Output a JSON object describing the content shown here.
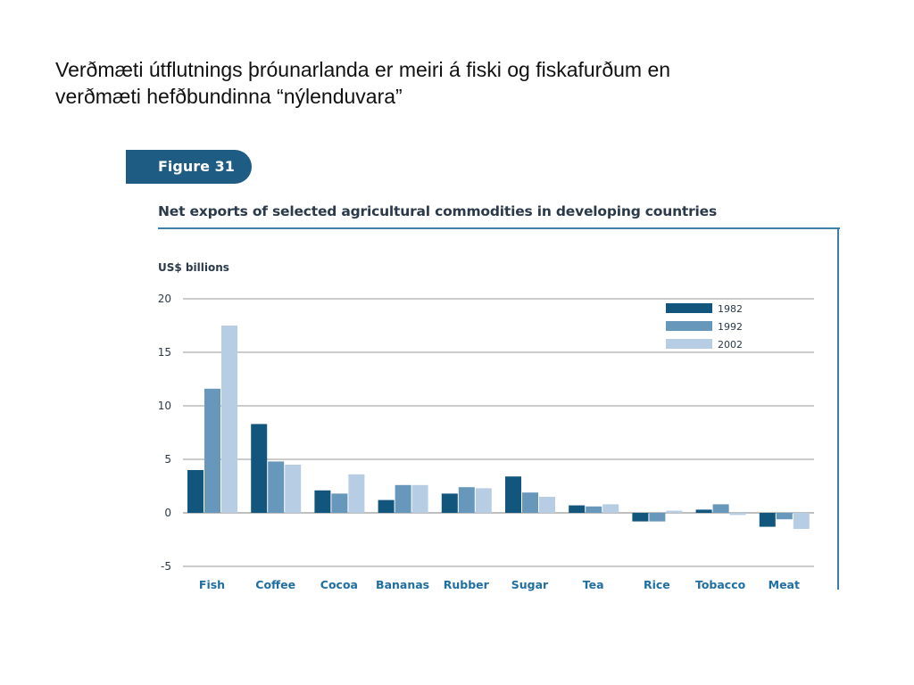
{
  "slide": {
    "title_line1": "Verðmæti útflutnings þróunarlanda er meiri á fiski og fiskafurðum en",
    "title_line2": "verðmæti hefðbundinna “nýlenduvara”"
  },
  "figure": {
    "tab_label": "Figure 31",
    "title": "Net exports of selected agricultural commodities in developing countries",
    "unit_label": "US$ billions"
  },
  "colors": {
    "1982": "#12567e",
    "1992": "#6897bc",
    "2002": "#b7cde3",
    "grid": "#999999",
    "frame": "#3d7fa6",
    "category_text": "#1f6fa3"
  },
  "chart_data": {
    "type": "bar",
    "title": "Net exports of selected agricultural commodities in developing countries",
    "ylabel": "US$ billions",
    "xlabel": "",
    "ylim": [
      -5,
      20
    ],
    "yticks": [
      20,
      15,
      10,
      5,
      0,
      -5
    ],
    "grid": true,
    "legend_position": "top-right",
    "categories": [
      "Fish",
      "Coffee",
      "Cocoa",
      "Bananas",
      "Rubber",
      "Sugar",
      "Tea",
      "Rice",
      "Tobacco",
      "Meat"
    ],
    "series": [
      {
        "name": "1982",
        "values": [
          4.0,
          8.3,
          2.1,
          1.2,
          1.8,
          3.4,
          0.7,
          -0.8,
          0.3,
          -1.3
        ]
      },
      {
        "name": "1992",
        "values": [
          11.6,
          4.8,
          1.8,
          2.6,
          2.4,
          1.9,
          0.6,
          -0.8,
          0.8,
          -0.6
        ]
      },
      {
        "name": "2002",
        "values": [
          17.5,
          4.5,
          3.6,
          2.6,
          2.3,
          1.5,
          0.8,
          0.2,
          -0.2,
          -1.5
        ]
      }
    ]
  }
}
